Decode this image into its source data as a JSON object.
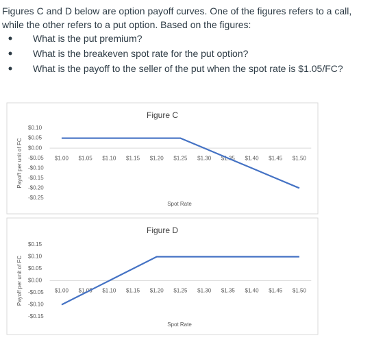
{
  "intro": [
    "Figures C and D below are option payoff curves. One of the figures refers to a call,",
    "while the other refers to a put option. Based on the figures:"
  ],
  "questions": [
    "What is the put premium?",
    "What is the breakeven spot rate for the put option?",
    "What is the payoff to the seller of the put when the spot rate is $1.05/FC?"
  ],
  "chart_data": [
    {
      "type": "line",
      "title": "Figure C",
      "x_label": "Spot Rate",
      "y_label": "Payoff per unit of FC",
      "categories": [
        "$1.00",
        "$1.05",
        "$1.10",
        "$1.15",
        "$1.20",
        "$1.25",
        "$1.30",
        "$1.35",
        "$1.40",
        "$1.45",
        "$1.50"
      ],
      "values": [
        0.05,
        0.05,
        0.05,
        0.05,
        0.05,
        0.05,
        0,
        -0.05,
        -0.1,
        -0.15,
        -0.2
      ],
      "color": "#4472c4",
      "ylim": [
        -0.25,
        0.1
      ],
      "yticks": [
        {
          "value": 0.1,
          "label": "$0.10"
        },
        {
          "value": 0.05,
          "label": "$0.05"
        },
        {
          "value": 0,
          "label": "$0.00"
        },
        {
          "value": -0.05,
          "label": "-$0.05"
        },
        {
          "value": -0.1,
          "label": "-$0.10"
        },
        {
          "value": -0.15,
          "label": "-$0.15"
        },
        {
          "value": -0.2,
          "label": "-$0.20"
        },
        {
          "value": -0.25,
          "label": "-$0.25"
        }
      ]
    },
    {
      "type": "line",
      "title": "Figure D",
      "x_label": "Spot Rate",
      "y_label": "Payoff per unit of FC",
      "categories": [
        "$1.00",
        "$1.05",
        "$1.10",
        "$1.15",
        "$1.20",
        "$1.25",
        "$1.30",
        "$1.35",
        "$1.40",
        "$1.45",
        "$1.50"
      ],
      "values": [
        -0.1,
        -0.05,
        0,
        0.05,
        0.1,
        0.1,
        0.1,
        0.1,
        0.1,
        0.1,
        0.1
      ],
      "color": "#4472c4",
      "ylim": [
        -0.15,
        0.15
      ],
      "yticks": [
        {
          "value": 0.15,
          "label": "$0.15"
        },
        {
          "value": 0.1,
          "label": "$0.10"
        },
        {
          "value": 0.05,
          "label": "$0.05"
        },
        {
          "value": 0,
          "label": "$0.00"
        },
        {
          "value": -0.05,
          "label": "-$0.05"
        },
        {
          "value": -0.1,
          "label": "-$0.10"
        },
        {
          "value": -0.15,
          "label": "-$0.15"
        }
      ]
    }
  ]
}
